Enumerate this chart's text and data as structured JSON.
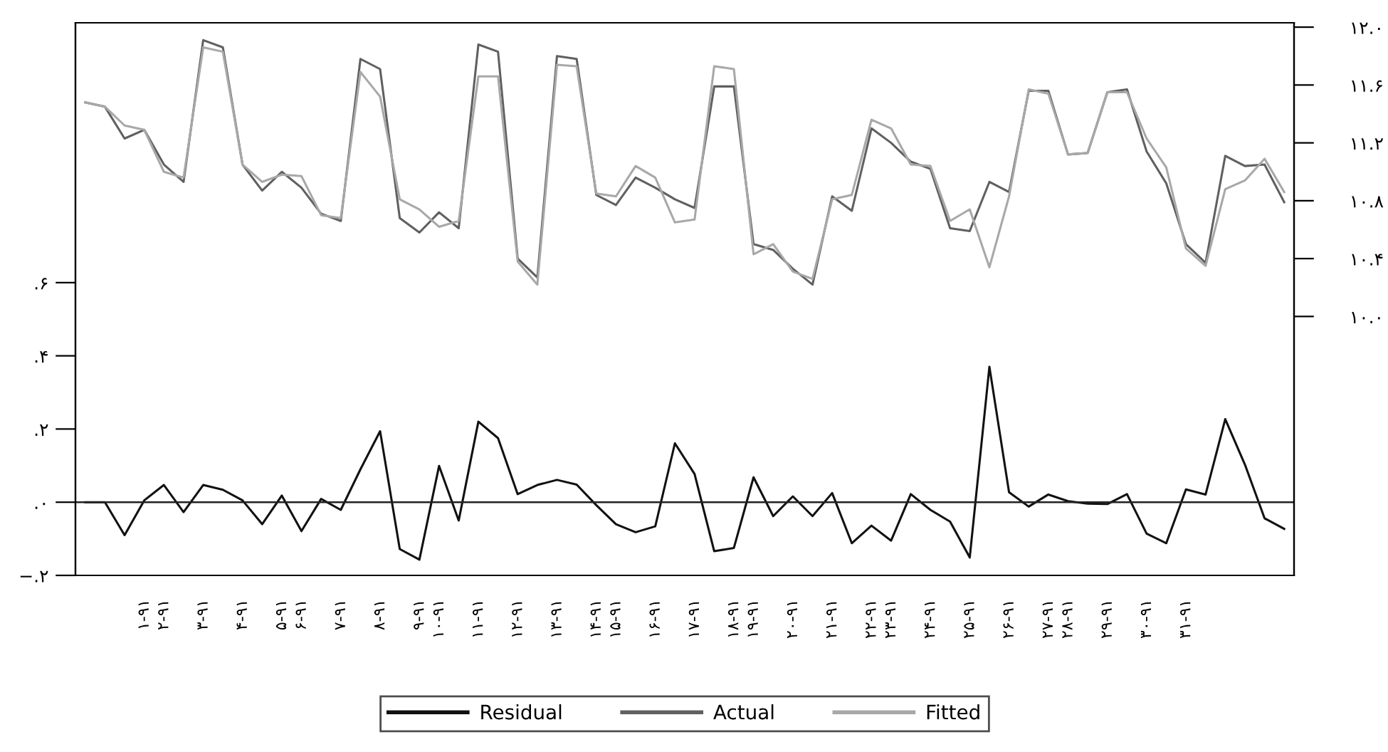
{
  "chart_data": {
    "type": "line",
    "categories": [
      null,
      null,
      null,
      "۱-۹۱",
      "۲-۹۱",
      null,
      "۳-۹۱",
      null,
      "۴-۹۱",
      null,
      "۵-۹۱",
      "۶-۹۱",
      null,
      "۷-۹۱",
      null,
      "۸-۹۱",
      null,
      "۹-۹۱",
      "۱۰-۹۱",
      null,
      "۱۱-۹۱",
      null,
      "۱۲-۹۱",
      null,
      "۱۳-۹۱",
      null,
      "۱۴-۹۱",
      "۱۵-۹۱",
      null,
      "۱۶-۹۱",
      null,
      "۱۷-۹۱",
      null,
      "۱۸-۹۱",
      "۱۹-۹۱",
      null,
      "۲۰-۹۱",
      null,
      "۲۱-۹۱",
      null,
      "۲۲-۹۱",
      "۲۳-۹۱",
      null,
      "۲۴-۹۱",
      null,
      "۲۵-۹۱",
      null,
      "۲۶-۹۱",
      null,
      "۲۷-۹۱",
      "۲۸-۹۱",
      null,
      "۲۹-۹۱",
      null,
      "۳۰-۹۱",
      null,
      "۳۱-۹۱",
      null,
      null,
      null,
      null,
      null
    ],
    "series": [
      {
        "name": "Residual",
        "color": "#111111",
        "values": [
          0,
          0,
          -0.09,
          0.005,
          0.047,
          -0.027,
          0.047,
          0.034,
          0.005,
          -0.06,
          0.018,
          -0.079,
          0.009,
          -0.021,
          0.09,
          0.194,
          -0.128,
          -0.157,
          0.099,
          -0.05,
          0.22,
          0.175,
          0.022,
          0.047,
          0.061,
          0.048,
          -0.008,
          -0.06,
          -0.082,
          -0.066,
          0.161,
          0.077,
          -0.134,
          -0.125,
          0.068,
          -0.038,
          0.016,
          -0.038,
          0.025,
          -0.112,
          -0.064,
          -0.105,
          0.022,
          -0.021,
          -0.053,
          -0.151,
          0.37,
          0.027,
          -0.012,
          0.021,
          0.003,
          -0.004,
          -0.005,
          0.022,
          -0.086,
          -0.112,
          0.035,
          0.021,
          0.227,
          0.103,
          -0.044,
          -0.073
        ]
      },
      {
        "name": "Actual",
        "color": "#606060",
        "axis": "y2",
        "values": [
          11.48,
          11.45,
          11.23,
          11.29,
          11.05,
          10.93,
          11.91,
          11.86,
          11.05,
          10.87,
          11.0,
          10.89,
          10.71,
          10.66,
          11.78,
          11.71,
          10.68,
          10.58,
          10.72,
          10.61,
          11.88,
          11.83,
          10.4,
          10.27,
          11.8,
          11.78,
          10.84,
          10.77,
          10.96,
          10.89,
          10.81,
          10.75,
          11.59,
          11.59,
          10.5,
          10.46,
          10.33,
          10.22,
          10.83,
          10.73,
          11.3,
          11.2,
          11.07,
          11.02,
          10.61,
          10.59,
          10.93,
          10.86,
          11.56,
          11.56,
          11.12,
          11.13,
          11.55,
          11.57,
          11.14,
          10.92,
          10.5,
          10.37,
          11.11,
          11.04,
          11.05,
          10.79
        ]
      },
      {
        "name": "Fitted",
        "color": "#a8a8a8",
        "axis": "y2",
        "values": [
          11.48,
          11.45,
          11.32,
          11.29,
          11.0,
          10.96,
          11.86,
          11.83,
          11.05,
          10.93,
          10.98,
          10.97,
          10.7,
          10.68,
          11.69,
          11.52,
          10.81,
          10.74,
          10.62,
          10.66,
          11.66,
          11.66,
          10.38,
          10.22,
          11.74,
          11.73,
          10.85,
          10.83,
          11.04,
          10.96,
          10.65,
          10.67,
          11.73,
          11.71,
          10.43,
          10.5,
          10.31,
          10.26,
          10.81,
          10.84,
          11.36,
          11.3,
          11.05,
          11.04,
          10.66,
          10.74,
          10.34,
          10.83,
          11.57,
          11.54,
          11.12,
          11.13,
          11.55,
          11.55,
          11.23,
          11.03,
          10.47,
          10.35,
          10.88,
          10.94,
          11.09,
          10.86
        ]
      }
    ],
    "ylim": [
      -0.2,
      1.31
    ],
    "yticks": [
      {
        "value": -0.2,
        "label": "−.۲"
      },
      {
        "value": 0,
        "label": ".۰"
      },
      {
        "value": 0.2,
        "label": ".۲"
      },
      {
        "value": 0.4,
        "label": ".۴"
      },
      {
        "value": 0.6,
        "label": ".۶"
      }
    ],
    "y2lim": [
      8.21,
      12.03
    ],
    "y2ticks": [
      {
        "value": 10.0,
        "label": "۱۰.۰"
      },
      {
        "value": 10.4,
        "label": "۱۰.۴"
      },
      {
        "value": 10.8,
        "label": "۱۰.۸"
      },
      {
        "value": 11.2,
        "label": "۱۱.۲"
      },
      {
        "value": 11.6,
        "label": "۱۱.۶"
      },
      {
        "value": 12.0,
        "label": "۱۲.۰"
      }
    ],
    "ref_lines": [
      {
        "axis": "y",
        "value": 0,
        "color": "#222222"
      }
    ],
    "line_style": "solid",
    "legend": "bottom",
    "grid": false
  }
}
